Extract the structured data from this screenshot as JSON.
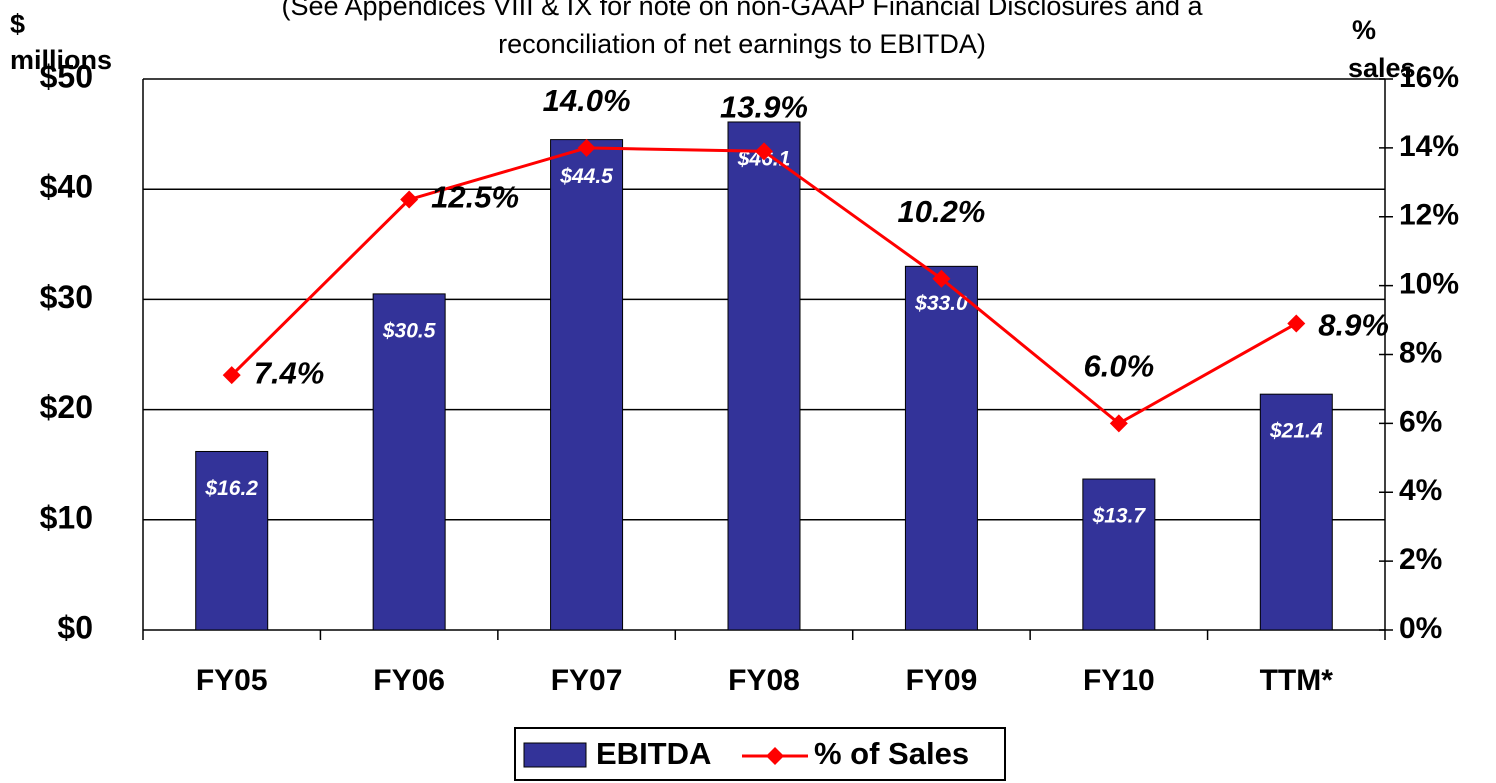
{
  "chart_data": {
    "type": "bar_line",
    "subtitle_lines": [
      "(See Appendices VIII & IX for note on non-GAAP Financial Disclosures and a",
      "reconciliation of net earnings to EBITDA)"
    ],
    "ylabel_lines": [
      "$",
      "millions"
    ],
    "y2label_lines": [
      "%",
      "sales"
    ],
    "categories": [
      "FY05",
      "FY06",
      "FY07",
      "FY08",
      "FY09",
      "FY10",
      "TTM*"
    ],
    "series": [
      {
        "name": "EBITDA",
        "color": "#333399",
        "values": [
          16.2,
          30.5,
          44.5,
          46.1,
          33.0,
          13.7,
          21.4
        ],
        "value_labels": [
          "$16.2",
          "$30.5",
          "$44.5",
          "$46.1",
          "$33.0",
          "$13.7",
          "$21.4"
        ]
      },
      {
        "name": "% of Sales",
        "color": "#ff0000",
        "axis": "y2",
        "values": [
          7.4,
          12.5,
          14.0,
          13.9,
          10.2,
          6.0,
          8.9
        ],
        "value_labels": [
          "7.4%",
          "12.5%",
          "14.0%",
          "13.9%",
          "10.2%",
          "6.0%",
          "8.9%"
        ]
      }
    ],
    "ylim": [
      0,
      50
    ],
    "yticks": [
      {
        "value": 0,
        "label": "$0"
      },
      {
        "value": 10,
        "label": "$10"
      },
      {
        "value": 20,
        "label": "$20"
      },
      {
        "value": 30,
        "label": "$30"
      },
      {
        "value": 40,
        "label": "$40"
      },
      {
        "value": 50,
        "label": "$50"
      }
    ],
    "y2lim": [
      0,
      16
    ],
    "y2ticks": [
      {
        "value": 0,
        "label": "0%"
      },
      {
        "value": 2,
        "label": "2%"
      },
      {
        "value": 4,
        "label": "4%"
      },
      {
        "value": 6,
        "label": "6%"
      },
      {
        "value": 8,
        "label": "8%"
      },
      {
        "value": 10,
        "label": "10%"
      },
      {
        "value": 12,
        "label": "12%"
      },
      {
        "value": 14,
        "label": "14%"
      },
      {
        "value": 16,
        "label": "16%"
      }
    ],
    "grid": true,
    "legend": "bottom"
  }
}
